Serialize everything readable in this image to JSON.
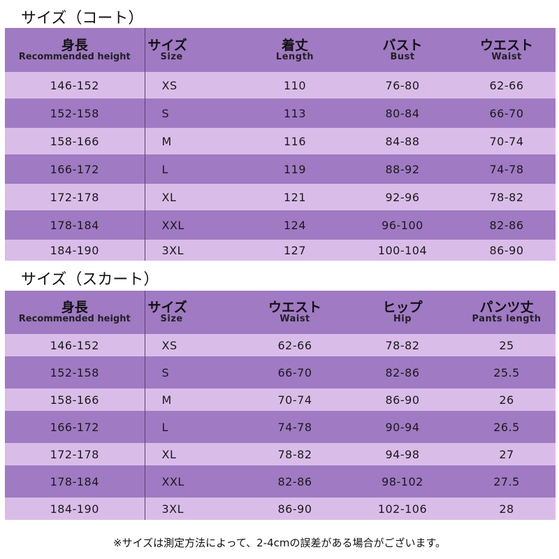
{
  "coat": {
    "title": "サイズ（コート）",
    "headers": [
      {
        "main": "身長",
        "sub": "Recommended height"
      },
      {
        "main": "サイズ",
        "sub": "Size"
      },
      {
        "main": "着丈",
        "sub": "Length"
      },
      {
        "main": "バスト",
        "sub": "Bust"
      },
      {
        "main": "ウエスト",
        "sub": "Waist"
      }
    ],
    "rows": [
      [
        "146-152",
        "XS",
        "110",
        "76-80",
        "62-66"
      ],
      [
        "152-158",
        "S",
        "113",
        "80-84",
        "66-70"
      ],
      [
        "158-166",
        "M",
        "116",
        "84-88",
        "70-74"
      ],
      [
        "166-172",
        "L",
        "119",
        "88-92",
        "74-78"
      ],
      [
        "172-178",
        "XL",
        "121",
        "92-96",
        "78-82"
      ],
      [
        "178-184",
        "XXL",
        "124",
        "96-100",
        "82-86"
      ],
      [
        "184-190",
        "3XL",
        "127",
        "100-104",
        "86-90"
      ]
    ]
  },
  "skirt": {
    "title": "サイズ（スカート）",
    "headers": [
      {
        "main": "身長",
        "sub": "Recommended height"
      },
      {
        "main": "サイズ",
        "sub": "Size"
      },
      {
        "main": "ウエスト",
        "sub": "Waist"
      },
      {
        "main": "ヒップ",
        "sub": "Hip"
      },
      {
        "main": "パンツ丈",
        "sub": "Pants length"
      }
    ],
    "rows": [
      [
        "146-152",
        "XS",
        "62-66",
        "78-82",
        "25"
      ],
      [
        "152-158",
        "S",
        "66-70",
        "82-86",
        "25.5"
      ],
      [
        "158-166",
        "M",
        "70-74",
        "86-90",
        "26"
      ],
      [
        "166-172",
        "L",
        "74-78",
        "90-94",
        "26.5"
      ],
      [
        "172-178",
        "XL",
        "78-82",
        "94-98",
        "27"
      ],
      [
        "178-184",
        "XXL",
        "82-86",
        "98-102",
        "27.5"
      ],
      [
        "184-190",
        "3XL",
        "86-90",
        "102-106",
        "28"
      ]
    ]
  },
  "note": "※サイズは測定方法によって、2-4cmの誤差がある場合がございます。",
  "colors": {
    "row_dark": "#a07ac3",
    "row_light": "#d9bde8",
    "header": "#a07ac3"
  }
}
